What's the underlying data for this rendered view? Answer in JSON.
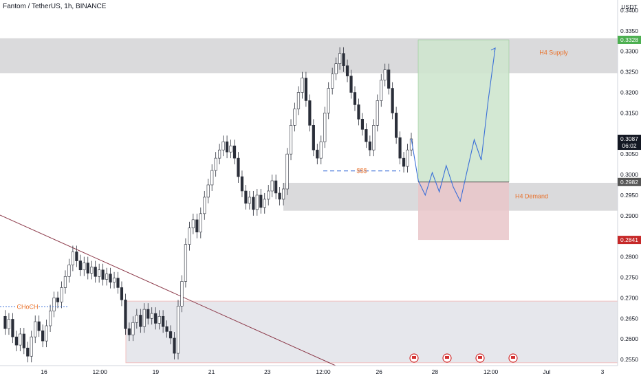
{
  "header": {
    "title": "Fantom / TetherUS, 1h, BINANCE"
  },
  "colors": {
    "candle": "#2a2e39",
    "zone_gray": "#d6d6d8",
    "lower_zone": "#e4e5ea",
    "profit": "#cfe6cf",
    "loss": "#e9c6c9",
    "projection": "#3a6fd8",
    "trendline": "#8c3a4a",
    "label_orange": "#e8702a",
    "tag_green": "#4caf50",
    "tag_red": "#c62828",
    "tag_dark": "#131722",
    "tag_gray": "#555555"
  },
  "chart_data": {
    "type": "candlestick",
    "price_axis": {
      "unit": "USDT",
      "ticks": [
        "0.3400",
        "0.3350",
        "0.3300",
        "0.3250",
        "0.3200",
        "0.3150",
        "0.3050",
        "0.3000",
        "0.2950",
        "0.2900",
        "0.2800",
        "0.2750",
        "0.2700",
        "0.2650",
        "0.2600",
        "0.2550"
      ],
      "ylim": [
        0.2535,
        0.3425
      ]
    },
    "time_axis": {
      "ticks": [
        "16",
        "12:00",
        "19",
        "21",
        "23",
        "12:00",
        "26",
        "28",
        "12:00",
        "Jul",
        "3"
      ]
    },
    "price_tags": [
      {
        "price": 0.3328,
        "label": "0.3328",
        "color": "green"
      },
      {
        "price": 0.3087,
        "label": "0.3087",
        "sub": "06:02",
        "color": "dark"
      },
      {
        "price": 0.2982,
        "label": "0.2982",
        "color": "gray"
      },
      {
        "price": 0.2841,
        "label": "0.2841",
        "color": "red"
      }
    ],
    "zones": [
      {
        "name": "H4 Supply",
        "label": "H4 Supply",
        "top": 0.3332,
        "bottom": 0.3247
      },
      {
        "name": "H4 Demand",
        "label": "H4 Demand",
        "top": 0.298,
        "bottom": 0.2912
      },
      {
        "name": "lower-zone",
        "label": "",
        "top": 0.2692,
        "bottom": 0.2542
      }
    ],
    "position": {
      "target": 0.3328,
      "entry": 0.2982,
      "stop": 0.2841
    },
    "annotations": [
      {
        "text": "$$$",
        "price": 0.3009
      },
      {
        "text": "CHoCH",
        "price": 0.2678
      }
    ],
    "events_count": 4,
    "path": [
      0.2655,
      0.2625,
      0.2648,
      0.2605,
      0.2585,
      0.2612,
      0.2578,
      0.2558,
      0.2605,
      0.2642,
      0.262,
      0.2595,
      0.2632,
      0.2668,
      0.27,
      0.269,
      0.2725,
      0.2752,
      0.278,
      0.2812,
      0.279,
      0.2768,
      0.2785,
      0.276,
      0.2775,
      0.2752,
      0.2768,
      0.2745,
      0.2758,
      0.2738,
      0.2748,
      0.2725,
      0.2695,
      0.2625,
      0.261,
      0.264,
      0.2658,
      0.263,
      0.2672,
      0.265,
      0.2662,
      0.2638,
      0.2655,
      0.263,
      0.2618,
      0.2602,
      0.2565,
      0.268,
      0.274,
      0.283,
      0.287,
      0.289,
      0.286,
      0.2905,
      0.2945,
      0.2975,
      0.301,
      0.304,
      0.306,
      0.308,
      0.3055,
      0.307,
      0.304,
      0.2995,
      0.296,
      0.293,
      0.2945,
      0.2915,
      0.295,
      0.292,
      0.294,
      0.296,
      0.2985,
      0.2955,
      0.294,
      0.2965,
      0.305,
      0.312,
      0.316,
      0.32,
      0.3235,
      0.318,
      0.312,
      0.306,
      0.304,
      0.308,
      0.315,
      0.321,
      0.3245,
      0.327,
      0.3295,
      0.3265,
      0.324,
      0.32,
      0.317,
      0.3135,
      0.311,
      0.308,
      0.306,
      0.312,
      0.318,
      0.323,
      0.3255,
      0.321,
      0.315,
      0.309,
      0.304,
      0.302,
      0.306,
      0.3087
    ],
    "projection": [
      0.3087,
      0.2985,
      0.295,
      0.3005,
      0.2958,
      0.3022,
      0.297,
      0.2935,
      0.301,
      0.3085,
      0.3035,
      0.318,
      0.3308
    ]
  }
}
